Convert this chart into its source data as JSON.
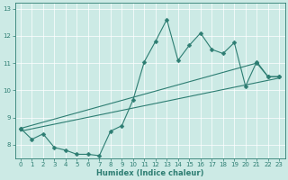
{
  "title": "",
  "xlabel": "Humidex (Indice chaleur)",
  "ylabel": "",
  "bg_color": "#cceae5",
  "line_color": "#2d7d72",
  "xlim": [
    -0.5,
    23.5
  ],
  "ylim": [
    7.5,
    13.2
  ],
  "yticks": [
    8,
    9,
    10,
    11,
    12,
    13
  ],
  "xticks": [
    0,
    1,
    2,
    3,
    4,
    5,
    6,
    7,
    8,
    9,
    10,
    11,
    12,
    13,
    14,
    15,
    16,
    17,
    18,
    19,
    20,
    21,
    22,
    23
  ],
  "series1_x": [
    0,
    1,
    2,
    3,
    4,
    5,
    6,
    7,
    8,
    9,
    10,
    11,
    12,
    13,
    14,
    15,
    16,
    17,
    18,
    19,
    20,
    21,
    22,
    23
  ],
  "series1_y": [
    8.6,
    8.2,
    8.4,
    7.9,
    7.8,
    7.65,
    7.65,
    7.6,
    8.5,
    8.7,
    9.65,
    11.05,
    11.8,
    12.6,
    11.1,
    11.65,
    12.1,
    11.5,
    11.35,
    11.75,
    10.15,
    11.05,
    10.5,
    10.5
  ],
  "series2_x": [
    0,
    21,
    22,
    23
  ],
  "series2_y": [
    8.6,
    11.0,
    10.5,
    10.5
  ],
  "series3_x": [
    0,
    23
  ],
  "series3_y": [
    8.5,
    10.45
  ],
  "marker_size": 2.5,
  "line_width": 0.8,
  "xlabel_fontsize": 6.0,
  "tick_fontsize": 5.0
}
